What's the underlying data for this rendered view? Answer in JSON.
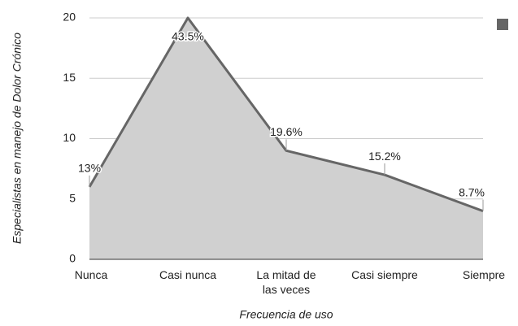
{
  "chart_data": {
    "type": "area",
    "x_label": "Frecuencia de uso",
    "y_label": "Especialistas en manejo de Dolor Crónico",
    "categories": [
      "Nunca",
      "Casi nunca",
      "La mitad de las veces",
      "Casi siempre",
      "Siempre"
    ],
    "series": [
      {
        "color": "#666666",
        "fill": "#d0d0d0",
        "values": [
          6,
          20,
          9,
          7,
          4
        ],
        "percent_labels": [
          {
            "value": 13,
            "label": "13%"
          },
          {
            "value": 43.5,
            "label": "43.5%"
          },
          {
            "value": 19.6,
            "label": "19.6%"
          },
          {
            "value": 15.2,
            "label": "15.2%"
          },
          {
            "value": 8.7,
            "label": "8.7%"
          }
        ]
      }
    ],
    "legend_position": "top-right",
    "ylim": [
      0,
      20
    ],
    "yticks": [
      0,
      5,
      10,
      15,
      20
    ],
    "grid": true
  }
}
